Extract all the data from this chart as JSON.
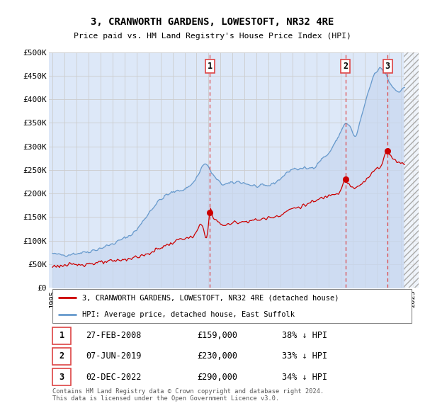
{
  "title": "3, CRANWORTH GARDENS, LOWESTOFT, NR32 4RE",
  "subtitle": "Price paid vs. HM Land Registry's House Price Index (HPI)",
  "xlim": [
    1994.7,
    2025.5
  ],
  "ylim": [
    0,
    500000
  ],
  "yticks": [
    0,
    50000,
    100000,
    150000,
    200000,
    250000,
    300000,
    350000,
    400000,
    450000,
    500000
  ],
  "ytick_labels": [
    "£0",
    "£50K",
    "£100K",
    "£150K",
    "£200K",
    "£250K",
    "£300K",
    "£350K",
    "£400K",
    "£450K",
    "£500K"
  ],
  "xticks": [
    1995,
    1996,
    1997,
    1998,
    1999,
    2000,
    2001,
    2002,
    2003,
    2004,
    2005,
    2006,
    2007,
    2008,
    2009,
    2010,
    2011,
    2012,
    2013,
    2014,
    2015,
    2016,
    2017,
    2018,
    2019,
    2020,
    2021,
    2022,
    2023,
    2024,
    2025
  ],
  "grid_color": "#cccccc",
  "bg_color": "#dde8f8",
  "hatch_bg": "#e8eef8",
  "hpi_color": "#6699cc",
  "hpi_fill_color": "#c8d8f0",
  "price_color": "#cc0000",
  "vline_color": "#dd4444",
  "hatch_start": 2024.25,
  "purchase_markers": [
    {
      "year": 2008.1,
      "price": 159000,
      "label": "1"
    },
    {
      "year": 2019.42,
      "price": 230000,
      "label": "2"
    },
    {
      "year": 2022.92,
      "price": 290000,
      "label": "3"
    }
  ],
  "legend_line1": "3, CRANWORTH GARDENS, LOWESTOFT, NR32 4RE (detached house)",
  "legend_line2": "HPI: Average price, detached house, East Suffolk",
  "table_rows": [
    {
      "label": "1",
      "date": "27-FEB-2008",
      "price": "£159,000",
      "hpi": "38% ↓ HPI"
    },
    {
      "label": "2",
      "date": "07-JUN-2019",
      "price": "£230,000",
      "hpi": "33% ↓ HPI"
    },
    {
      "label": "3",
      "date": "02-DEC-2022",
      "price": "£290,000",
      "hpi": "34% ↓ HPI"
    }
  ],
  "footnote": "Contains HM Land Registry data © Crown copyright and database right 2024.\nThis data is licensed under the Open Government Licence v3.0."
}
